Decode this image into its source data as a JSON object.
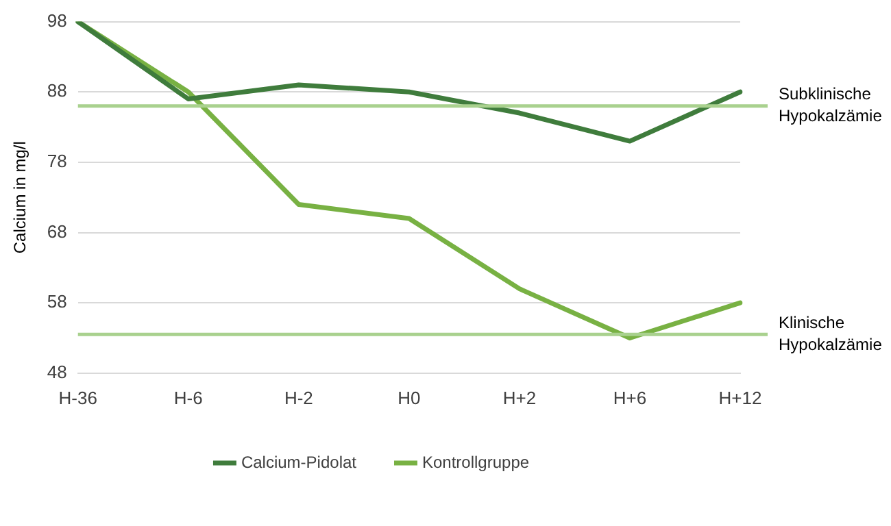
{
  "chart_data": {
    "type": "line",
    "ylabel": "Calcium in mg/l",
    "categories": [
      "H-36",
      "H-6",
      "H-2",
      "H0",
      "H+2",
      "H+6",
      "H+12"
    ],
    "series": [
      {
        "name": "Calcium-Pidolat",
        "color": "#3f7c3c",
        "values": [
          98,
          87,
          89,
          88,
          85,
          81,
          88
        ]
      },
      {
        "name": "Kontrollgruppe",
        "color": "#78b143",
        "values": [
          98,
          88,
          72,
          70,
          60,
          53,
          58
        ]
      }
    ],
    "ylim": [
      48,
      98
    ],
    "yticks": [
      48,
      58,
      68,
      78,
      88,
      98
    ],
    "grid": "y",
    "legend": "bottom",
    "marker": "none",
    "line_style": "solid",
    "ref_lines": [
      {
        "axis": "y",
        "value": 86,
        "label": "Subklinische Hypokalzämie",
        "color": "#a9d18e"
      },
      {
        "axis": "y",
        "value": 53.5,
        "label": "Klinische Hypokalzämie",
        "color": "#a9d18e"
      }
    ]
  }
}
